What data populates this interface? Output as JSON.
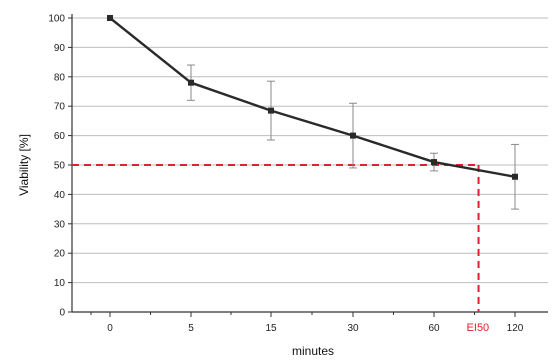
{
  "chart_data": {
    "type": "line",
    "xlabel": "minutes",
    "ylabel": "Viability [%]",
    "categories": [
      "0",
      "5",
      "15",
      "30",
      "60",
      "120"
    ],
    "series": [
      {
        "values": [
          100,
          78,
          68.5,
          60,
          51,
          46
        ],
        "errors": [
          0,
          6,
          10,
          11,
          3,
          11
        ]
      }
    ],
    "ylim": [
      0,
      100
    ],
    "yticks": [
      "0",
      "10",
      "20",
      "30",
      "40",
      "50",
      "60",
      "70",
      "80",
      "90",
      "100"
    ],
    "grid": true,
    "annotation": {
      "label": "EI50",
      "y": 50,
      "x_category_position": 4.55
    },
    "colors": {
      "series": "#2a2a2a",
      "annotation": "#e0202a",
      "grid": "#bdbdbd"
    }
  }
}
